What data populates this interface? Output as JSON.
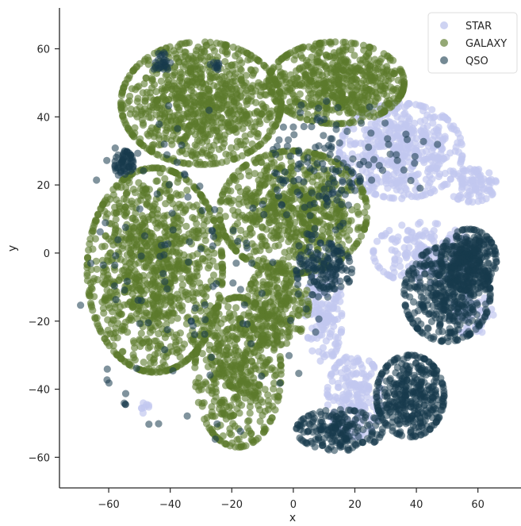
{
  "chart_data": {
    "type": "scatter",
    "title": "",
    "xlabel": "x",
    "ylabel": "y",
    "xlim": [
      -76,
      74
    ],
    "ylim": [
      -69,
      72
    ],
    "xticks": [
      -60,
      -40,
      -20,
      0,
      20,
      40,
      60
    ],
    "yticks": [
      -60,
      -40,
      -20,
      0,
      20,
      40,
      60
    ],
    "xtick_labels": [
      "−60",
      "−40",
      "−20",
      "0",
      "20",
      "40",
      "60"
    ],
    "ytick_labels": [
      "−60",
      "−40",
      "−20",
      "0",
      "20",
      "40",
      "60"
    ],
    "grid": false,
    "legend_position": "top-right",
    "series": [
      {
        "name": "STAR",
        "color": "#c2c8ef",
        "alpha": 0.7,
        "clusters": [
          {
            "cx": 35,
            "cy": 30,
            "rx": 20,
            "ry": 14,
            "n": 500
          },
          {
            "cx": 58,
            "cy": 20,
            "rx": 8,
            "ry": 5,
            "n": 90
          },
          {
            "cx": 42,
            "cy": 0,
            "rx": 16,
            "ry": 9,
            "n": 180
          },
          {
            "cx": 10,
            "cy": -18,
            "rx": 6,
            "ry": 14,
            "n": 150
          },
          {
            "cx": 20,
            "cy": -42,
            "rx": 9,
            "ry": 12,
            "n": 180
          },
          {
            "cx": 58,
            "cy": -18,
            "rx": 7,
            "ry": 6,
            "n": 60
          },
          {
            "cx": -49,
            "cy": -45,
            "rx": 2,
            "ry": 2,
            "n": 8
          }
        ]
      },
      {
        "name": "GALAXY",
        "color": "#5b7a2b",
        "alpha": 0.6,
        "clusters": [
          {
            "cx": -30,
            "cy": 44,
            "rx": 26,
            "ry": 18,
            "n": 900
          },
          {
            "cx": 14,
            "cy": 50,
            "rx": 22,
            "ry": 12,
            "n": 620
          },
          {
            "cx": 0,
            "cy": 12,
            "rx": 24,
            "ry": 18,
            "n": 750
          },
          {
            "cx": -45,
            "cy": -5,
            "rx": 22,
            "ry": 30,
            "n": 1100
          },
          {
            "cx": -18,
            "cy": -35,
            "rx": 14,
            "ry": 22,
            "n": 520
          },
          {
            "cx": -5,
            "cy": -15,
            "rx": 10,
            "ry": 12,
            "n": 250
          }
        ]
      },
      {
        "name": "QSO",
        "color": "#173a4d",
        "alpha": 0.55,
        "clusters": [
          {
            "cx": 50,
            "cy": -12,
            "rx": 14,
            "ry": 14,
            "n": 420
          },
          {
            "cx": 57,
            "cy": -2,
            "rx": 9,
            "ry": 9,
            "n": 300
          },
          {
            "cx": 38,
            "cy": -42,
            "rx": 11,
            "ry": 12,
            "n": 380
          },
          {
            "cx": 15,
            "cy": -52,
            "rx": 14,
            "ry": 6,
            "n": 200
          },
          {
            "cx": 10,
            "cy": -5,
            "rx": 9,
            "ry": 8,
            "n": 140
          },
          {
            "cx": -55,
            "cy": 26,
            "rx": 3,
            "ry": 4,
            "n": 60
          },
          {
            "cx": -43,
            "cy": 56,
            "rx": 3,
            "ry": 3,
            "n": 25
          },
          {
            "cx": -25,
            "cy": 55,
            "rx": 2,
            "ry": 2,
            "n": 10
          },
          {
            "cx": 8,
            "cy": 25,
            "rx": 14,
            "ry": 20,
            "n": 110
          },
          {
            "cx": 30,
            "cy": 30,
            "rx": 18,
            "ry": 14,
            "n": 30
          },
          {
            "cx": -30,
            "cy": -5,
            "rx": 40,
            "ry": 50,
            "n": 120
          }
        ]
      }
    ]
  }
}
